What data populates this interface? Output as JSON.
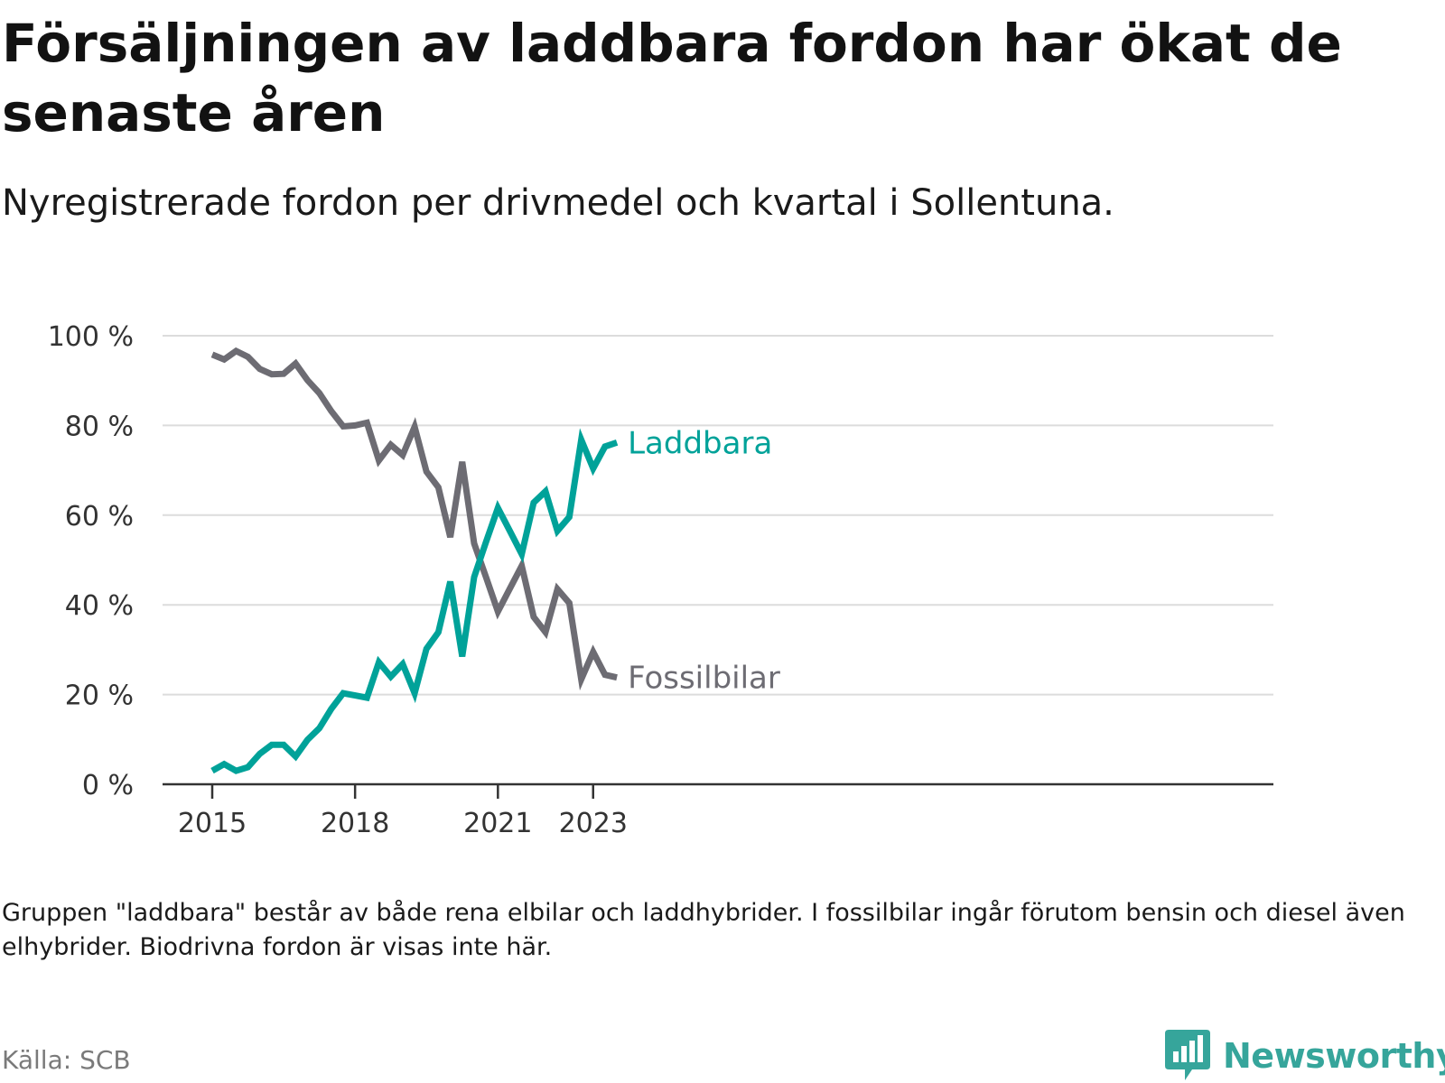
{
  "title": "Försäljningen av laddbara fordon har ökat de senaste åren",
  "subtitle": "Nyregistrerade fordon per drivmedel och kvartal i Sollentuna.",
  "note": "Gruppen \"laddbara\" består av både rena elbilar och laddhybrider. I fossilbilar ingår förutom bensin och diesel även elhybrider. Biodrivna fordon är visas inte här.",
  "source": "Källa: SCB",
  "brand": "Newsworthy",
  "colors": {
    "laddbara": "#00a299",
    "fossil": "#6d6c73",
    "grid": "#dcdcdc",
    "axis": "#333333",
    "brand": "#36a59b"
  },
  "chart_data": {
    "type": "line",
    "title": "Försäljningen av laddbara fordon har ökat de senaste åren",
    "xlabel": "",
    "ylabel": "",
    "ylim": [
      0,
      100
    ],
    "yticks": [
      0,
      20,
      40,
      60,
      80,
      100
    ],
    "ytick_labels": [
      "0 %",
      "20 %",
      "40 %",
      "60 %",
      "80 %",
      "100 %"
    ],
    "xticks": [
      {
        "index": 0,
        "label": "2015"
      },
      {
        "index": 12,
        "label": "2018"
      },
      {
        "index": 24,
        "label": "2021"
      },
      {
        "index": 32,
        "label": "2023"
      }
    ],
    "grid": true,
    "series": [
      {
        "name": "Laddbara",
        "color": "#00a299",
        "values": [
          3,
          4.5,
          3,
          3.8,
          6.8,
          8.8,
          8.8,
          6.2,
          9.9,
          12.5,
          16.8,
          20.3,
          19.8,
          19.3,
          27.2,
          24,
          26.8,
          20.3,
          30.2,
          33.9,
          45.2,
          28.5,
          46.2,
          54,
          61.6,
          56.5,
          51.3,
          62.8,
          65.3,
          56.5,
          59.6,
          76.8,
          70.4,
          75.3,
          76.2
        ]
      },
      {
        "name": "Fossilbilar",
        "color": "#6d6c73",
        "values": [
          95.8,
          94.7,
          96.6,
          95.3,
          92.6,
          91.4,
          91.5,
          93.8,
          90.1,
          87.2,
          83.2,
          79.8,
          80,
          80.6,
          72.2,
          75.7,
          73.4,
          79.7,
          69.7,
          66.2,
          55.1,
          71.9,
          53.7,
          46.2,
          38.5,
          43.6,
          48.7,
          37.3,
          33.9,
          43.5,
          40.4,
          23.4,
          29.5,
          24.4,
          23.8
        ]
      }
    ]
  }
}
